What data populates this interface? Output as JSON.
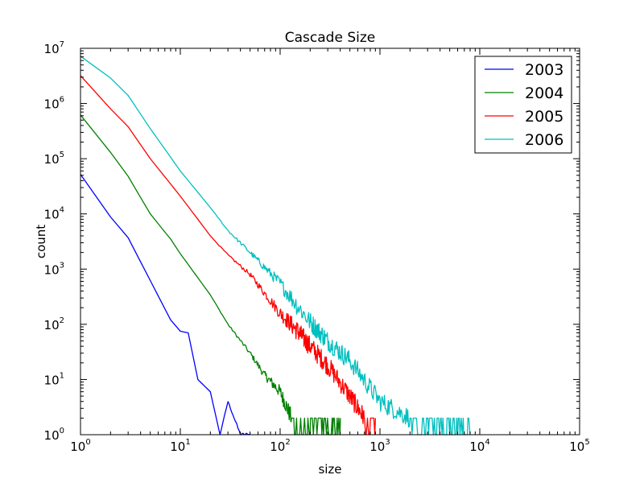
{
  "chart_data": {
    "type": "line",
    "title": "Cascade Size",
    "xlabel": "size",
    "ylabel": "count",
    "xscale": "log",
    "yscale": "log",
    "xlim": [
      1,
      100000
    ],
    "ylim": [
      1,
      10000000
    ],
    "x_ticks": [
      {
        "base": "10",
        "exp": "0",
        "value": 1
      },
      {
        "base": "10",
        "exp": "1",
        "value": 10
      },
      {
        "base": "10",
        "exp": "2",
        "value": 100
      },
      {
        "base": "10",
        "exp": "3",
        "value": 1000
      },
      {
        "base": "10",
        "exp": "4",
        "value": 10000
      },
      {
        "base": "10",
        "exp": "5",
        "value": 100000
      }
    ],
    "y_ticks": [
      {
        "base": "10",
        "exp": "0",
        "value": 1
      },
      {
        "base": "10",
        "exp": "1",
        "value": 10
      },
      {
        "base": "10",
        "exp": "2",
        "value": 100
      },
      {
        "base": "10",
        "exp": "3",
        "value": 1000
      },
      {
        "base": "10",
        "exp": "4",
        "value": 10000
      },
      {
        "base": "10",
        "exp": "5",
        "value": 100000
      },
      {
        "base": "10",
        "exp": "6",
        "value": 1000000
      },
      {
        "base": "10",
        "exp": "7",
        "value": 10000000
      }
    ],
    "grid": false,
    "legend_position": "top-right",
    "series": [
      {
        "name": "2003",
        "color": "#0000ff",
        "x": [
          1,
          2,
          3,
          5,
          8,
          10,
          12,
          15,
          20,
          25,
          30,
          40,
          50
        ],
        "y": [
          52000,
          8800,
          3700,
          620,
          120,
          75,
          70,
          10,
          6,
          1,
          4,
          1,
          1
        ],
        "tail_end_x": 50
      },
      {
        "name": "2004",
        "color": "#008000",
        "x": [
          1,
          2,
          3,
          5,
          8,
          10,
          20,
          30,
          50,
          70,
          100,
          130
        ],
        "y": [
          620000,
          130000,
          48000,
          10000,
          3500,
          1900,
          340,
          100,
          30,
          12,
          6,
          2
        ],
        "tail_end_x": 400
      },
      {
        "name": "2005",
        "color": "#ff0000",
        "x": [
          1,
          2,
          3,
          5,
          10,
          20,
          30,
          50,
          100,
          150,
          200,
          300,
          500,
          700
        ],
        "y": [
          3200000,
          800000,
          380000,
          100000,
          21000,
          4000,
          1800,
          800,
          160,
          75,
          40,
          18,
          5,
          2
        ],
        "tail_end_x": 900
      },
      {
        "name": "2006",
        "color": "#00bfbf",
        "x": [
          1,
          2,
          3,
          5,
          10,
          20,
          30,
          50,
          100,
          200,
          300,
          500,
          1000,
          2000
        ],
        "y": [
          7200000,
          2900000,
          1400000,
          350000,
          60000,
          13000,
          5000,
          2000,
          550,
          110,
          50,
          22,
          4,
          2
        ],
        "tail_end_x": 8000
      }
    ]
  }
}
